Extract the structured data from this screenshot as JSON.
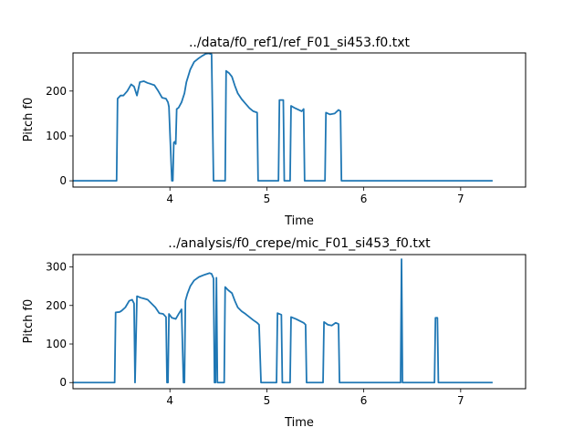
{
  "chart_data": [
    {
      "type": "line",
      "title": "../data/f0_ref1/ref_F01_si453.f0.txt",
      "xlabel": "Time",
      "ylabel": "Pitch f0",
      "xlim": [
        3.0,
        7.67
      ],
      "ylim": [
        -14,
        285
      ],
      "xticks": [
        4,
        5,
        6,
        7
      ],
      "yticks": [
        0,
        100,
        200
      ],
      "grid": false,
      "color": "#1f77b4",
      "series": [
        {
          "x": [
            3.0,
            3.45,
            3.46,
            3.49,
            3.52,
            3.56,
            3.6,
            3.63,
            3.66,
            3.69,
            3.73,
            3.77,
            3.8,
            3.84,
            3.88,
            3.92,
            3.96,
            3.98,
            3.99,
            4.02,
            4.03,
            4.04,
            4.05,
            4.06,
            4.07,
            4.09,
            4.12,
            4.15,
            4.17,
            4.21,
            4.25,
            4.29,
            4.33,
            4.37,
            4.4,
            4.43,
            4.45,
            4.46,
            4.57,
            4.58,
            4.61,
            4.64,
            4.67,
            4.7,
            4.74,
            4.78,
            4.82,
            4.86,
            4.9,
            4.91,
            4.92,
            5.12,
            5.13,
            5.17,
            5.18,
            5.24,
            5.25,
            5.29,
            5.33,
            5.36,
            5.38,
            5.39,
            5.6,
            5.61,
            5.65,
            5.7,
            5.74,
            5.76,
            5.77,
            7.33
          ],
          "values": [
            0,
            0,
            183,
            190,
            190,
            200,
            215,
            210,
            190,
            220,
            222,
            218,
            216,
            213,
            200,
            185,
            183,
            175,
            165,
            0,
            0,
            85,
            87,
            82,
            160,
            163,
            175,
            195,
            220,
            248,
            265,
            272,
            278,
            283,
            284,
            282,
            0,
            0,
            0,
            245,
            240,
            232,
            212,
            195,
            182,
            172,
            162,
            155,
            152,
            0,
            0,
            0,
            180,
            180,
            0,
            0,
            167,
            162,
            158,
            155,
            160,
            0,
            0,
            152,
            148,
            150,
            158,
            155,
            0,
            0
          ]
        }
      ]
    },
    {
      "type": "line",
      "title": "../analysis/f0_crepe/mic_F01_si453_f0.txt",
      "xlabel": "Time",
      "ylabel": "Pitch f0",
      "xlim": [
        3.0,
        7.67
      ],
      "ylim": [
        -16,
        332
      ],
      "xticks": [
        4,
        5,
        6,
        7
      ],
      "yticks": [
        0,
        100,
        200,
        300
      ],
      "grid": false,
      "color": "#1f77b4",
      "series": [
        {
          "x": [
            3.0,
            3.43,
            3.44,
            3.48,
            3.5,
            3.54,
            3.58,
            3.61,
            3.63,
            3.64,
            3.66,
            3.7,
            3.73,
            3.77,
            3.81,
            3.85,
            3.89,
            3.93,
            3.96,
            3.97,
            3.98,
            3.99,
            4.02,
            4.06,
            4.09,
            4.12,
            4.14,
            4.15,
            4.16,
            4.18,
            4.21,
            4.25,
            4.3,
            4.36,
            4.41,
            4.43,
            4.45,
            4.46,
            4.47,
            4.48,
            4.49,
            4.5,
            4.56,
            4.57,
            4.6,
            4.64,
            4.67,
            4.7,
            4.74,
            4.78,
            4.82,
            4.86,
            4.9,
            4.92,
            4.94,
            5.1,
            5.11,
            5.15,
            5.16,
            5.24,
            5.25,
            5.3,
            5.34,
            5.38,
            5.4,
            5.41,
            5.58,
            5.59,
            5.63,
            5.67,
            5.71,
            5.74,
            5.75,
            6.38,
            6.39,
            6.4,
            6.41,
            6.73,
            6.74,
            6.76,
            6.77,
            7.33
          ],
          "values": [
            0,
            0,
            182,
            183,
            186,
            195,
            212,
            215,
            205,
            0,
            224,
            220,
            218,
            215,
            205,
            195,
            180,
            178,
            170,
            0,
            0,
            178,
            168,
            165,
            178,
            190,
            0,
            0,
            212,
            230,
            250,
            265,
            274,
            280,
            284,
            282,
            270,
            0,
            0,
            272,
            0,
            0,
            0,
            248,
            240,
            232,
            212,
            195,
            185,
            178,
            170,
            162,
            155,
            150,
            0,
            0,
            180,
            176,
            0,
            0,
            170,
            165,
            160,
            155,
            150,
            0,
            0,
            157,
            150,
            148,
            155,
            152,
            0,
            0,
            320,
            0,
            0,
            0,
            168,
            168,
            0,
            0
          ]
        }
      ]
    }
  ]
}
